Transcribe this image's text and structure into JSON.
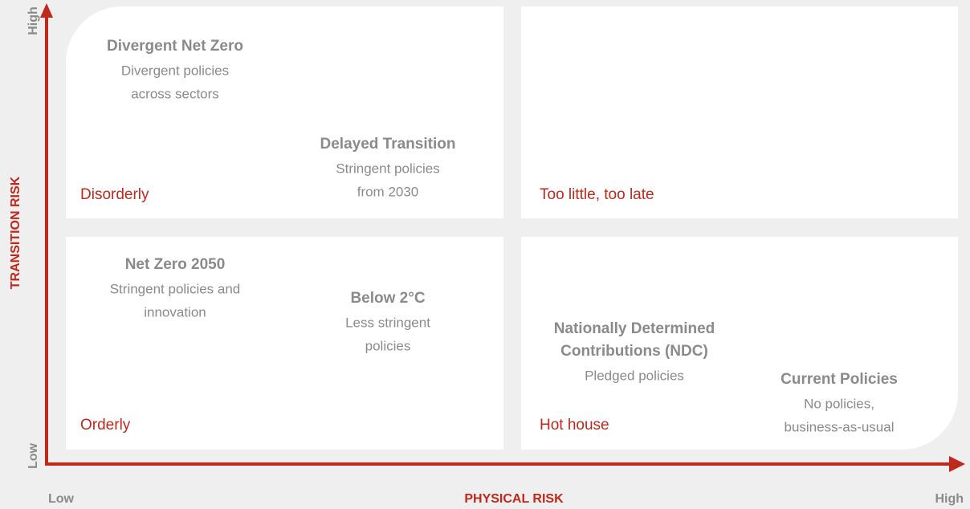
{
  "axes": {
    "y_label": "TRANSITION RISK",
    "y_low": "Low",
    "y_high": "High",
    "x_label": "PHYSICAL RISK",
    "x_low": "Low",
    "x_high": "High"
  },
  "quadrants": [
    {
      "label": "Disorderly"
    },
    {
      "label": "Too little, too late"
    },
    {
      "label": "Orderly"
    },
    {
      "label": "Hot house"
    }
  ],
  "scenarios": [
    {
      "title": [
        "Divergent Net Zero"
      ],
      "description": [
        "Divergent policies",
        "across sectors"
      ]
    },
    {
      "title": [
        "Delayed Transition"
      ],
      "description": [
        "Stringent policies",
        "from 2030"
      ]
    },
    {
      "title": [
        "Net Zero 2050"
      ],
      "description": [
        "Stringent policies and",
        "innovation"
      ]
    },
    {
      "title": [
        "Below 2°C"
      ],
      "description": [
        "Less stringent",
        "policies"
      ]
    },
    {
      "title": [
        "Nationally Determined",
        "Contributions (NDC)"
      ],
      "description": [
        "Pledged policies"
      ]
    },
    {
      "title": [
        "Current Policies"
      ],
      "description": [
        "No policies,",
        "business-as-usual"
      ]
    }
  ]
}
